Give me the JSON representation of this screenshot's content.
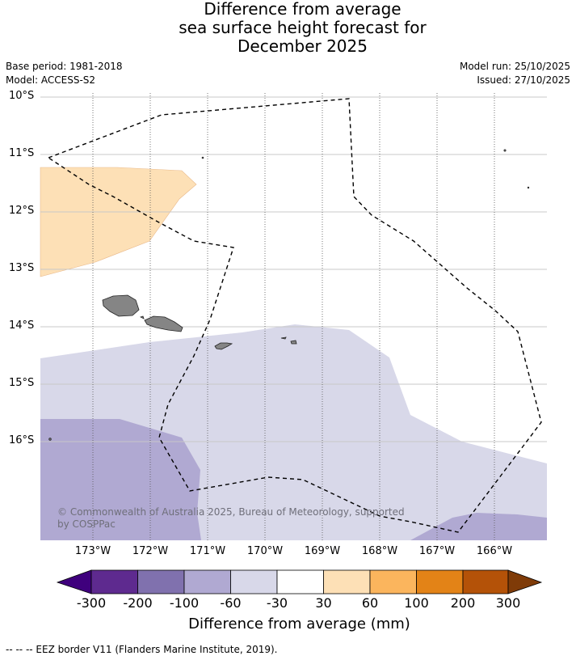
{
  "title": {
    "line1": "Difference from average",
    "line2": "sea surface height forecast for",
    "line3": "December 2025"
  },
  "meta": {
    "base_period": "Base period: 1981-2018",
    "model": "Model: ACCESS-S2",
    "model_run": "Model run: 25/10/2025",
    "issued": "Issued: 27/10/2025"
  },
  "map": {
    "lat_labels": [
      "10°S",
      "11°S",
      "12°S",
      "13°S",
      "14°S",
      "15°S",
      "16°S"
    ],
    "lon_labels": [
      "173°W",
      "172°W",
      "171°W",
      "170°W",
      "169°W",
      "168°W",
      "167°W",
      "166°W"
    ],
    "copyright": "© Commonwealth of Australia 2025, Bureau of Meteorology, supported by COSPPac",
    "colors": {
      "band_30_60": "#fde0b6",
      "band_neg30_neg60": "#d8d8e9",
      "band_neg60_neg100": "#b0a9d2",
      "land": "#858585"
    }
  },
  "colorbar": {
    "ticks": [
      "-300",
      "-200",
      "-100",
      "-60",
      "-30",
      "30",
      "60",
      "100",
      "200",
      "300"
    ],
    "colors": [
      "#3f007d",
      "#5e2a8f",
      "#8071ae",
      "#b0a9d2",
      "#d8d8e9",
      "#ffffff",
      "#fde0b6",
      "#fbb55d",
      "#e38317",
      "#b45208",
      "#7f3b08"
    ],
    "label": "Difference from average (mm)"
  },
  "footnote": "--  --  -- EEZ border V11 (Flanders Marine Institute, 2019)."
}
